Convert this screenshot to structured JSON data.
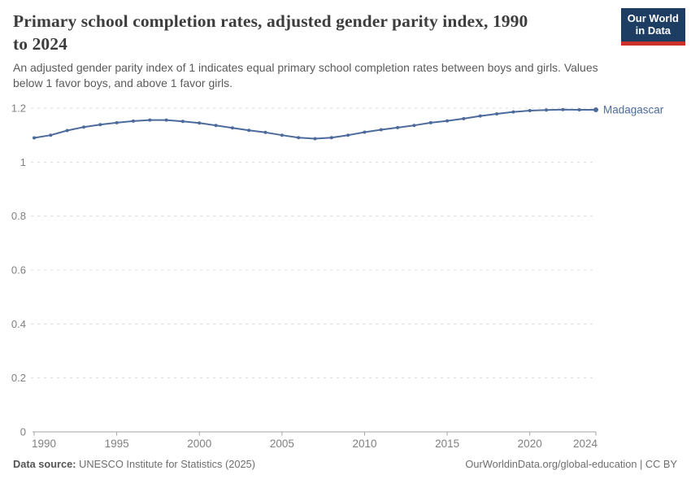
{
  "header": {
    "title_lines": [
      "Primary school completion rates, adjusted gender parity index, 1990",
      "to 2024"
    ],
    "subtitle_lines": [
      "An adjusted gender parity index of 1 indicates equal primary school completion rates between boys and girls. Values",
      "below 1 favor boys, and above 1 favor girls."
    ]
  },
  "logo": {
    "line1": "Our World",
    "line2": "in Data",
    "background_color": "#1d3d63",
    "accent_color": "#cc3027"
  },
  "footer": {
    "datasource_label": "Data source:",
    "datasource_value": " UNESCO Institute for Statistics (2025)",
    "attribution": "OurWorldinData.org/global-education | CC BY"
  },
  "chart_data": {
    "type": "line",
    "title": "Primary school completion rates, adjusted gender parity index, 1990 to 2024",
    "subtitle": "An adjusted gender parity index of 1 indicates equal primary school completion rates between boys and girls. Values below 1 favor boys, and above 1 favor girls.",
    "entity": "Madagascar",
    "xlabel": "",
    "ylabel": "",
    "xlim": [
      1990,
      2024
    ],
    "ylim": [
      0,
      1.2
    ],
    "grid": "horizontal-dashed",
    "legend_position": "end-of-line",
    "x": [
      1990,
      1991,
      1992,
      1993,
      1994,
      1995,
      1996,
      1997,
      1998,
      1999,
      2000,
      2001,
      2002,
      2003,
      2004,
      2005,
      2006,
      2007,
      2008,
      2009,
      2010,
      2011,
      2012,
      2013,
      2014,
      2015,
      2016,
      2017,
      2018,
      2019,
      2020,
      2021,
      2022,
      2023,
      2024
    ],
    "values": [
      1.09,
      1.1,
      1.117,
      1.13,
      1.139,
      1.146,
      1.152,
      1.156,
      1.156,
      1.151,
      1.145,
      1.136,
      1.127,
      1.118,
      1.11,
      1.1,
      1.091,
      1.087,
      1.091,
      1.1,
      1.111,
      1.12,
      1.128,
      1.136,
      1.146,
      1.153,
      1.161,
      1.171,
      1.179,
      1.186,
      1.191,
      1.193,
      1.195,
      1.194,
      1.194
    ],
    "x_ticks": [
      1990,
      1995,
      2000,
      2005,
      2010,
      2015,
      2020,
      2024
    ],
    "y_ticks": [
      {
        "value": 0,
        "label": "0"
      },
      {
        "value": 0.2,
        "label": "0.2"
      },
      {
        "value": 0.4,
        "label": "0.4"
      },
      {
        "value": 0.6,
        "label": "0.6"
      },
      {
        "value": 0.8,
        "label": "0.8"
      },
      {
        "value": 1,
        "label": "1"
      },
      {
        "value": 1.2,
        "label": "1.2"
      }
    ],
    "colors": {
      "line": "#4C6A9C",
      "grid": "#dcdcdc",
      "axis_line": "#a3a3a3",
      "axis_text": "#808080"
    }
  }
}
